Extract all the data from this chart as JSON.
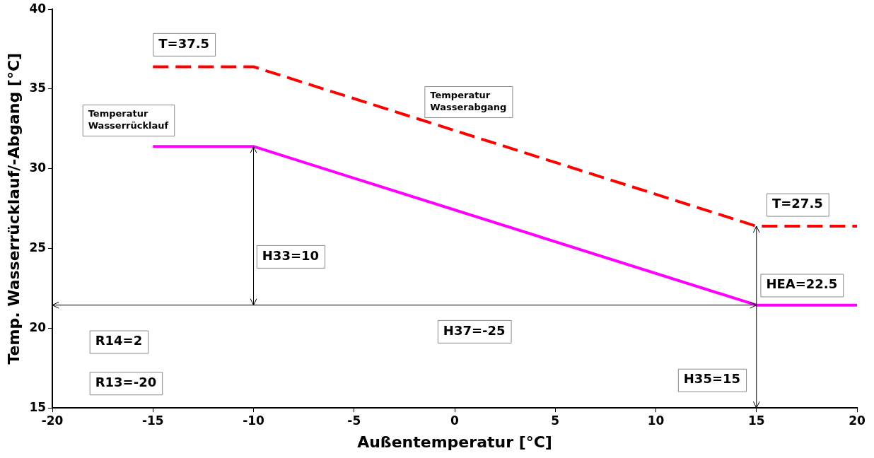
{
  "chart_data": {
    "type": "line",
    "xlabel": "Außentemperatur [°C]",
    "ylabel": "Temp. Wasserrücklauf/-Abgang [°C]",
    "xlim": [
      -20,
      20
    ],
    "xticks": [
      -20,
      -15,
      -10,
      -5,
      0,
      5,
      10,
      15,
      20
    ],
    "ylim": [
      15,
      40
    ],
    "yticks": [
      15,
      20,
      25,
      30,
      35,
      40
    ],
    "grid": false,
    "legend": false,
    "marker": "none",
    "series": [
      {
        "color": "#ff0000",
        "line_style": "dashed",
        "x": [
          -15,
          -10,
          15,
          20
        ],
        "values": [
          36.4,
          36.4,
          26.4,
          26.4
        ]
      },
      {
        "color": "#ff00ff",
        "line_style": "solid",
        "x": [
          -15,
          -10,
          15,
          20
        ],
        "values": [
          31.4,
          31.4,
          21.45,
          21.45
        ]
      }
    ],
    "ref_lines": [
      {
        "axis": "y",
        "value": 21.45,
        "color": "#000000"
      }
    ],
    "annotations": [
      "T=37.5",
      "Temperatur\nWasserrücklauf",
      "Temperatur\nWasserabgang",
      "T=27.5",
      "HEA=22.5",
      "H33=10",
      "H37=-25",
      "R14=2",
      "R13=-20",
      "H35=15"
    ]
  }
}
